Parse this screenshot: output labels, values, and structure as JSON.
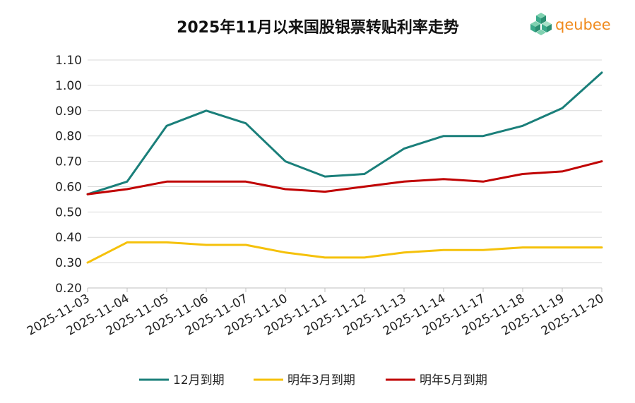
{
  "logo": {
    "text": "qeubee",
    "color": "#f08a1c",
    "accent": "#3aaa8a"
  },
  "chart_data": {
    "type": "line",
    "title": "2025年11月以来国股银票转贴利率走势",
    "xlabel": "",
    "ylabel": "",
    "ylim": [
      0.2,
      1.1
    ],
    "yticks": [
      "0.20",
      "0.30",
      "0.40",
      "0.50",
      "0.60",
      "0.70",
      "0.80",
      "0.90",
      "1.00",
      "1.10"
    ],
    "grid": true,
    "legend": "bottom",
    "categories": [
      "2025-11-03",
      "2025-11-04",
      "2025-11-05",
      "2025-11-06",
      "2025-11-07",
      "2025-11-10",
      "2025-11-11",
      "2025-11-12",
      "2025-11-13",
      "2025-11-14",
      "2025-11-17",
      "2025-11-18",
      "2025-11-19",
      "2025-11-20"
    ],
    "series": [
      {
        "name": "12月到期",
        "color": "#1a7f7a",
        "values": [
          0.57,
          0.62,
          0.84,
          0.9,
          0.85,
          0.7,
          0.64,
          0.65,
          0.75,
          0.8,
          0.8,
          0.84,
          0.91,
          1.05
        ]
      },
      {
        "name": "明年3月到期",
        "color": "#f5c10a",
        "values": [
          0.3,
          0.38,
          0.38,
          0.37,
          0.37,
          0.34,
          0.32,
          0.32,
          0.34,
          0.35,
          0.35,
          0.36,
          0.36,
          0.36
        ]
      },
      {
        "name": "明年5月到期",
        "color": "#c00000",
        "values": [
          0.57,
          0.59,
          0.62,
          0.62,
          0.62,
          0.59,
          0.58,
          0.6,
          0.62,
          0.63,
          0.62,
          0.65,
          0.66,
          0.7
        ]
      }
    ]
  }
}
